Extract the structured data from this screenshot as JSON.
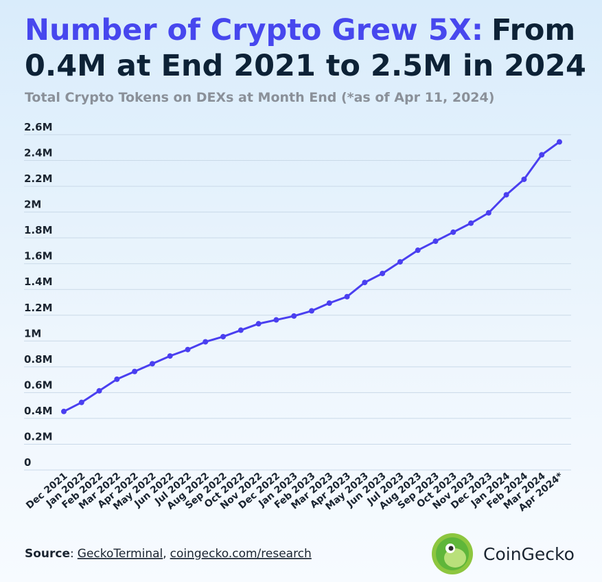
{
  "chart_data": {
    "type": "line",
    "title_highlight": "Number of Crypto Grew 5X:",
    "title_rest": "From 0.4M at End 2021 to 2.5M in 2024",
    "subtitle": "Total Crypto Tokens on DEXs at Month End (*as of Apr 11, 2024)",
    "categories": [
      "Dec 2021",
      "Jan 2022",
      "Feb 2022",
      "Mar 2022",
      "Apr 2022",
      "May 2022",
      "Jun 2022",
      "Jul 2022",
      "Aug 2022",
      "Sep 2022",
      "Oct 2022",
      "Nov 2022",
      "Dec 2022",
      "Jan 2023",
      "Feb 2023",
      "Mar 2023",
      "Apr 2023",
      "May 2023",
      "Jun 2023",
      "Jul 2023",
      "Aug 2023",
      "Sep 2023",
      "Oct 2023",
      "Nov 2023",
      "Dec 2023",
      "Jan 2024",
      "Feb 2024",
      "Mar 2024",
      "Apr 2024*"
    ],
    "values": [
      390000,
      460000,
      550000,
      640000,
      700000,
      760000,
      820000,
      870000,
      930000,
      970000,
      1020000,
      1070000,
      1100000,
      1130000,
      1170000,
      1230000,
      1280000,
      1390000,
      1460000,
      1550000,
      1640000,
      1710000,
      1780000,
      1850000,
      1930000,
      2070000,
      2190000,
      2380000,
      2480000
    ],
    "color": "#4a3ff0",
    "ylim": [
      0,
      2600000
    ],
    "yticks": [
      0,
      {
        "value": 200000,
        "label": "0.2M"
      },
      {
        "value": 400000,
        "label": "0.4M"
      },
      {
        "value": 600000,
        "label": "0.6M"
      },
      {
        "value": 800000,
        "label": "0.8M"
      },
      {
        "value": 1000000,
        "label": "1M"
      },
      {
        "value": 1200000,
        "label": "1.2M"
      },
      {
        "value": 1400000,
        "label": "1.4M"
      },
      {
        "value": 1600000,
        "label": "1.6M"
      },
      {
        "value": 1800000,
        "label": "1.8M"
      },
      {
        "value": 2000000,
        "label": "2M"
      },
      {
        "value": 2200000,
        "label": "2.2M"
      },
      {
        "value": 2400000,
        "label": "2.4M"
      },
      {
        "value": 2600000,
        "label": "2.6M"
      }
    ],
    "grid": true
  },
  "footer": {
    "label": "Source",
    "colon": ":",
    "links": [
      "GeckoTerminal",
      "coingecko.com/research"
    ],
    "comma": ",",
    "brand": "CoinGecko"
  }
}
